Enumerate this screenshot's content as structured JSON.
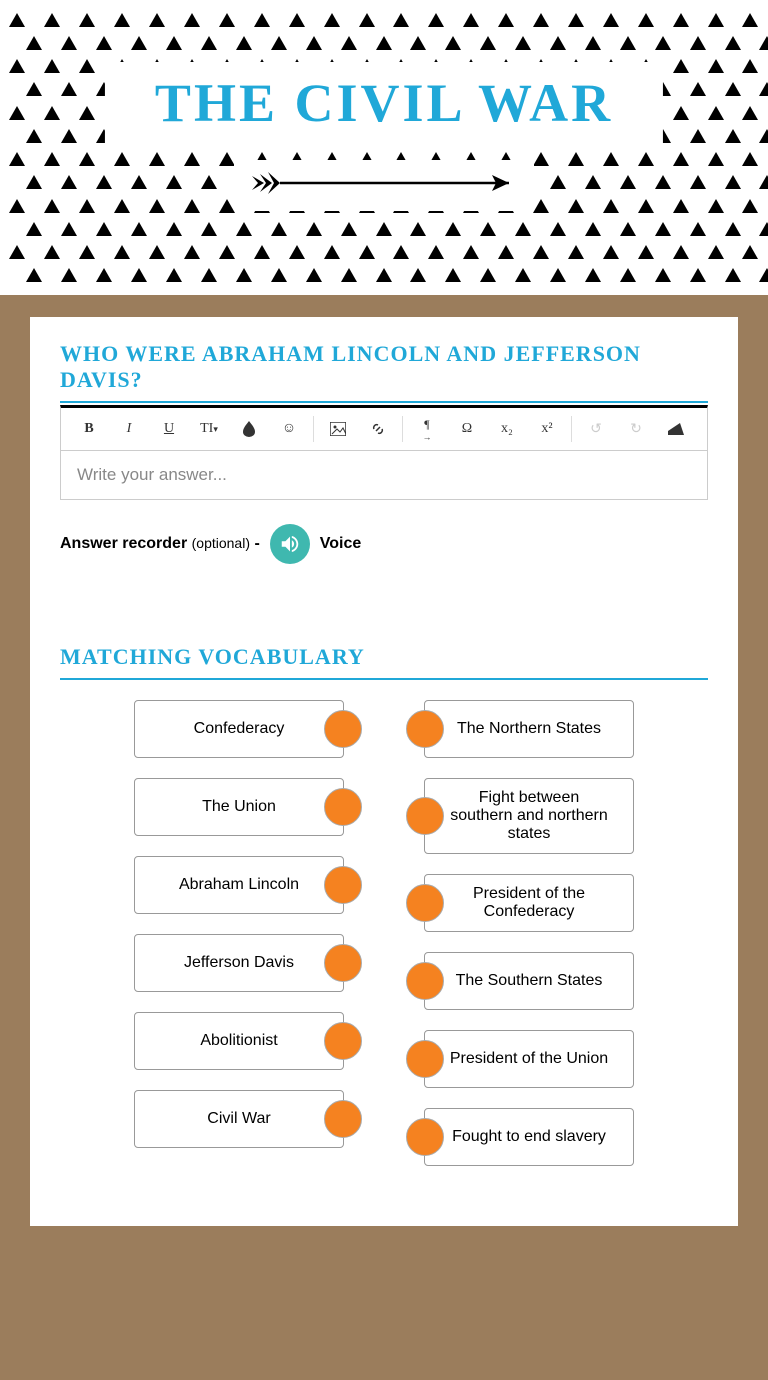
{
  "header": {
    "title": "THE CIVIL WAR",
    "title_color": "#20a8d8",
    "triangle_rows": 12,
    "triangles_per_row": 22
  },
  "question": {
    "title": "WHO WERE ABRAHAM LINCOLN AND JEFFERSON DAVIS?",
    "placeholder": "Write your answer...",
    "recorder_label": "Answer recorder",
    "recorder_optional": "(optional)",
    "recorder_dash": " - ",
    "voice_label": "Voice"
  },
  "toolbar": {
    "bold": "B",
    "italic": "I",
    "underline": "U",
    "textsize": "TI",
    "color": "●",
    "emoji": "☺",
    "image": "▣",
    "link": "🔗",
    "paragraph": "¶",
    "omega": "Ω",
    "subscript": "x₂",
    "superscript": "x²",
    "undo": "↺",
    "redo": "↻",
    "clear": "◢"
  },
  "matching": {
    "title": "MATCHING VOCABULARY",
    "dot_color": "#f58220",
    "left": [
      "Confederacy",
      "The Union",
      "Abraham Lincoln",
      "Jefferson Davis",
      "Abolitionist",
      "Civil War"
    ],
    "right": [
      "The Northern States",
      "Fight between southern and northern states",
      "President of the Confederacy",
      "The Southern States",
      "President of the Union",
      "Fought to end slavery"
    ]
  }
}
